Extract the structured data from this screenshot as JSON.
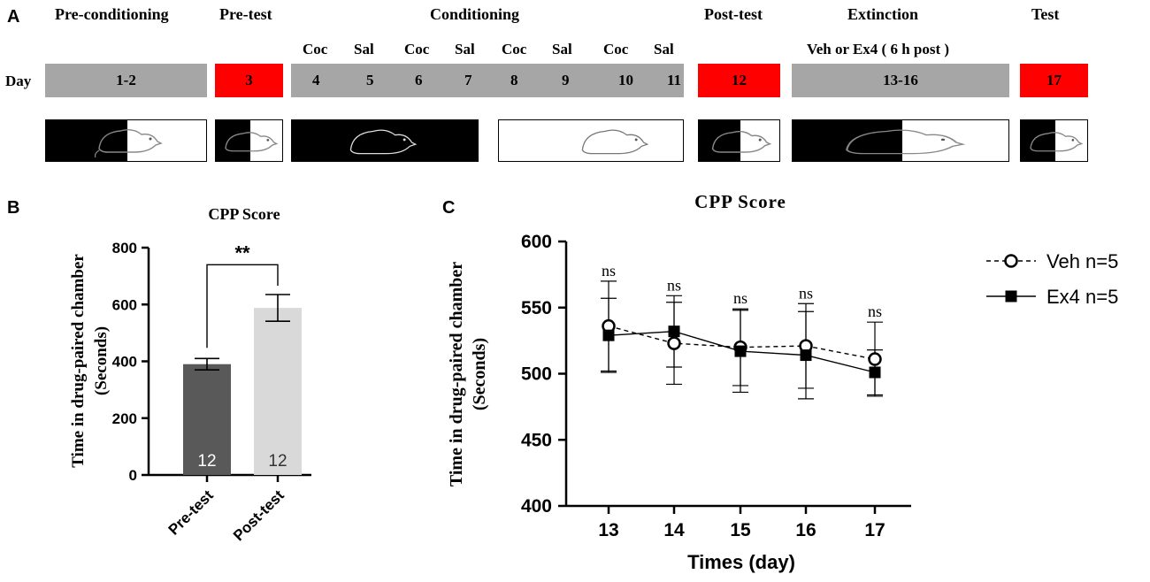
{
  "panel_a": {
    "letter": "A",
    "day_label": "Day",
    "phases": {
      "preconditioning": "Pre-conditioning",
      "pretest": "Pre-test",
      "conditioning": "Conditioning",
      "posttest": "Post-test",
      "extinction": "Extinction",
      "test": "Test"
    },
    "extinction_note": "Veh or Ex4 ( 6 h post )",
    "conditioning_sessions": [
      {
        "drug": "Coc",
        "day": "4"
      },
      {
        "drug": "Sal",
        "day": "5"
      },
      {
        "drug": "Coc",
        "day": "6"
      },
      {
        "drug": "Sal",
        "day": "7"
      },
      {
        "drug": "Coc",
        "day": "8"
      },
      {
        "drug": "Sal",
        "day": "9"
      },
      {
        "drug": "Coc",
        "day": "10"
      },
      {
        "drug": "Sal",
        "day": "11"
      }
    ],
    "day_ranges": {
      "preconditioning": "1-2",
      "pretest": "3",
      "posttest": "12",
      "extinction": "13-16",
      "test": "17"
    },
    "colors": {
      "red": "#ff0000",
      "gray": "#a6a6a6"
    }
  },
  "chart_data": [
    {
      "type": "bar",
      "panel": "B",
      "title": "CPP Score",
      "ylabel_line1": "Time in drug-paired chamber",
      "ylabel_line2": "(Seconds)",
      "categories": [
        "Pre-test",
        "Post-test"
      ],
      "values": [
        390,
        588
      ],
      "errors": [
        20,
        47
      ],
      "n_labels": [
        "12",
        "12"
      ],
      "bar_colors": [
        "#595959",
        "#d9d9d9"
      ],
      "ylim": [
        0,
        800
      ],
      "yticks": [
        "0",
        "200",
        "400",
        "600",
        "800"
      ],
      "significance": "**"
    },
    {
      "type": "line",
      "panel": "C",
      "title": "CPP Score",
      "xlabel": "Times (day)",
      "ylabel_line1": "Time in drug-paired chamber",
      "ylabel_line2": "(Seconds)",
      "x": [
        "13",
        "14",
        "15",
        "16",
        "17"
      ],
      "ylim": [
        400,
        600
      ],
      "yticks": [
        "400",
        "450",
        "500",
        "550",
        "600"
      ],
      "annotations": [
        "ns",
        "ns",
        "ns",
        "ns",
        "ns"
      ],
      "series": [
        {
          "name": "Veh n=5",
          "marker": "open-circle",
          "line": "dashed",
          "values": [
            536,
            523,
            520,
            521,
            511
          ],
          "errors": [
            34,
            31,
            29,
            32,
            28
          ]
        },
        {
          "name": "Ex4 n=5",
          "marker": "filled-square",
          "line": "solid",
          "values": [
            529,
            532,
            517,
            514,
            501
          ],
          "errors": [
            28,
            27,
            31,
            33,
            17
          ]
        }
      ]
    }
  ]
}
